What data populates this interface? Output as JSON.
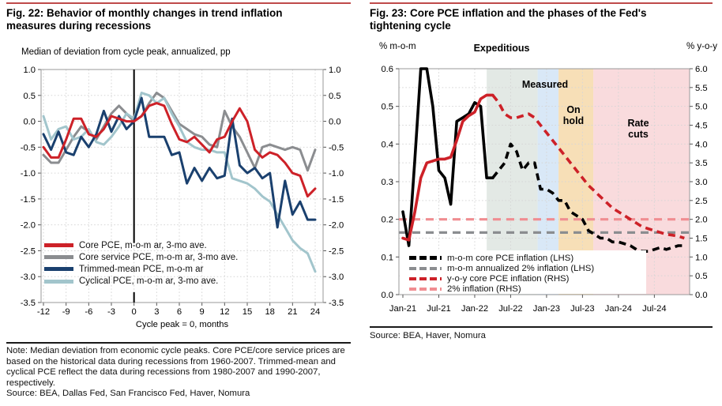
{
  "left_panel": {
    "title": "Fig. 22: Behavior of monthly changes in trend inflation measures during recessions",
    "subtitle": "Median of deviation from cycle peak, annualized, pp",
    "note": "Note: Median deviation from economic cycle peaks. Core PCE/core service prices are based on the historical data during recessions from 1960-2007. Trimmed-mean and cyclical PCE reflect the data during recessions from 1980-2007 and 1990-2007, respectively.",
    "source": "Source: BEA, Dallas Fed, San Francisco Fed, Haver, Nomura"
  },
  "right_panel": {
    "title": "Fig. 23: Core PCE inflation and the phases of the Fed's tightening cycle",
    "source": "Source: BEA, Haver, Nomura"
  },
  "chart_data": [
    {
      "id": "fig22",
      "type": "line",
      "title": "Behavior of monthly changes in trend inflation measures during recessions",
      "ylabel": "Median of deviation from cycle peak, annualized, pp",
      "xlabel": "Cycle peak = 0, months",
      "x_start": -12,
      "x_ticks": [
        -12,
        -9,
        -6,
        -3,
        0,
        3,
        6,
        9,
        12,
        15,
        18,
        21,
        24
      ],
      "ylim": [
        -3.5,
        1.0
      ],
      "y_ticks": [
        1.0,
        0.5,
        0.0,
        -0.5,
        -1.0,
        -1.5,
        -2.0,
        -2.5,
        -3.0,
        -3.5
      ],
      "peak_line_x": 0,
      "grid": true,
      "series": [
        {
          "name": "Core PCE, m-o-m ar, 3-mo ave.",
          "color": "#cd2128",
          "values": [
            -0.5,
            -0.7,
            -0.7,
            -0.35,
            0.05,
            0.05,
            -0.25,
            -0.3,
            -0.15,
            0.1,
            0.05,
            0,
            0,
            0.1,
            0.3,
            0.35,
            0.3,
            -0.05,
            -0.35,
            -0.4,
            -0.3,
            -0.45,
            -0.6,
            -0.35,
            -0.3,
            0,
            0.25,
            0,
            -0.55,
            -0.7,
            -0.6,
            -0.65,
            -0.8,
            -1.0,
            -1.05,
            -1.45,
            -1.3
          ]
        },
        {
          "name": "Core service PCE, m-o-m ar, 3-mo ave.",
          "color": "#8b8d90",
          "values": [
            -0.65,
            -0.8,
            -0.8,
            -0.55,
            -0.3,
            -0.1,
            -0.2,
            -0.35,
            -0.1,
            0.15,
            0.3,
            0.15,
            0,
            0.1,
            0.35,
            0.55,
            0.45,
            0.2,
            -0.05,
            -0.15,
            -0.25,
            -0.3,
            -0.45,
            -0.5,
            0.2,
            -0.1,
            -0.3,
            -0.6,
            -0.9,
            -0.5,
            -0.45,
            -0.5,
            -0.55,
            -0.5,
            -0.55,
            -0.95,
            -0.55
          ]
        },
        {
          "name": "Trimmed-mean PCE, m-o-m ar",
          "color": "#1a406e",
          "values": [
            -0.25,
            -0.55,
            -0.2,
            -0.6,
            -0.65,
            -0.3,
            -0.5,
            -0.25,
            0.2,
            -0.2,
            0.1,
            -0.15,
            0,
            0.45,
            -0.3,
            -0.3,
            -0.3,
            -0.65,
            -0.6,
            -1.2,
            -0.9,
            -1.15,
            -0.9,
            -1.1,
            -1.05,
            0.05,
            -0.85,
            -1.0,
            -0.9,
            -1.1,
            -1.0,
            -2.05,
            -1.15,
            -1.8,
            -1.55,
            -1.9,
            -1.9
          ]
        },
        {
          "name": "Cyclical PCE, m-o-m ar, 3-mo ave.",
          "color": "#a2c5cc",
          "values": [
            0.1,
            -0.35,
            -0.15,
            -0.1,
            -0.35,
            -0.3,
            -0.15,
            -0.4,
            -0.45,
            -0.3,
            -0.1,
            0.15,
            0.05,
            0.55,
            0.5,
            0.35,
            0.45,
            0.15,
            -0.1,
            -0.4,
            -0.5,
            -0.55,
            -0.55,
            -0.6,
            -0.6,
            -1.1,
            -1.15,
            -1.2,
            -1.3,
            -1.45,
            -1.55,
            -1.8,
            -2.05,
            -2.3,
            -2.45,
            -2.55,
            -2.9
          ]
        }
      ]
    },
    {
      "id": "fig23",
      "type": "line",
      "title": "Core PCE inflation and the phases of the Fed's tightening cycle",
      "lhs": {
        "unit": "% m-o-m",
        "min": 0.0,
        "max": 0.6,
        "tick_step": 0.1,
        "ticks": [
          0.6,
          0.5,
          0.4,
          0.3,
          0.2,
          0.1,
          0.0
        ]
      },
      "rhs": {
        "unit": "% y-o-y",
        "min": 0.0,
        "max": 6.0,
        "tick_step": 0.5,
        "ticks": [
          6.0,
          5.5,
          5.0,
          4.5,
          4.0,
          3.5,
          3.0,
          2.5,
          2.0,
          1.5,
          1.0,
          0.5,
          0.0
        ]
      },
      "x_labels": [
        "Jan-21",
        "Jul-21",
        "Jan-22",
        "Jul-22",
        "Jan-23",
        "Jul-23",
        "Jan-24",
        "Jul-24"
      ],
      "x_label_positions": [
        0,
        6,
        12,
        18,
        24,
        30,
        36,
        42
      ],
      "months_total": 48,
      "grid": true,
      "phases": [
        {
          "label": "Expeditious",
          "start": 14,
          "end": 22.5,
          "color": "#e3e9e5"
        },
        {
          "label": "Measured",
          "start": 22.5,
          "end": 26,
          "color": "#d9e8f7"
        },
        {
          "label": "On hold",
          "start": 26,
          "end": 31.8,
          "color": "#f7dfb7"
        },
        {
          "label": "Rate cuts",
          "start": 31.8,
          "end": 48,
          "color": "#f9dbdd"
        }
      ],
      "series": [
        {
          "name": "m-o-m core PCE inflation (LHS)",
          "axis": "lhs",
          "color": "#000000",
          "style": "solid_then_dashed",
          "solid_until_index": 15,
          "values": [
            0.22,
            0.13,
            0.36,
            0.6,
            0.6,
            0.5,
            0.33,
            0.31,
            0.24,
            0.46,
            0.47,
            0.48,
            0.51,
            0.5,
            0.31,
            0.31,
            0.33,
            0.35,
            0.4,
            0.38,
            0.33,
            0.35,
            0.35,
            0.28,
            0.28,
            0.27,
            0.25,
            0.25,
            0.22,
            0.21,
            0.2,
            0.17,
            0.16,
            0.15,
            0.15,
            0.14,
            0.14,
            0.135,
            0.13,
            0.12,
            0.115,
            0.115,
            0.12,
            0.125,
            0.12,
            0.125,
            0.13,
            0.13
          ]
        },
        {
          "name": "m-o-m annualized 2% inflation (LHS)",
          "axis": "lhs",
          "color": "#8b8d90",
          "style": "dashed",
          "constant": 0.165
        },
        {
          "name": "y-o-y core PCE inflation (RHS)",
          "axis": "rhs",
          "color": "#cd2128",
          "style": "solid_then_dashed",
          "solid_until_index": 15,
          "values": [
            1.5,
            1.45,
            2.2,
            3.1,
            3.5,
            3.55,
            3.6,
            3.6,
            3.65,
            4.1,
            4.6,
            4.75,
            4.85,
            5.2,
            5.3,
            5.3,
            5.1,
            4.8,
            4.7,
            4.7,
            4.75,
            4.8,
            4.7,
            4.5,
            4.3,
            4.1,
            3.9,
            3.7,
            3.5,
            3.3,
            3.1,
            2.9,
            2.75,
            2.6,
            2.45,
            2.3,
            2.2,
            2.1,
            2.0,
            1.9,
            1.8,
            1.75,
            1.7,
            1.65,
            1.6,
            1.58,
            1.55,
            1.5
          ]
        },
        {
          "name": "2% inflation (RHS)",
          "axis": "rhs",
          "color": "#f08d91",
          "style": "dashed",
          "constant": 2.0
        }
      ]
    }
  ]
}
